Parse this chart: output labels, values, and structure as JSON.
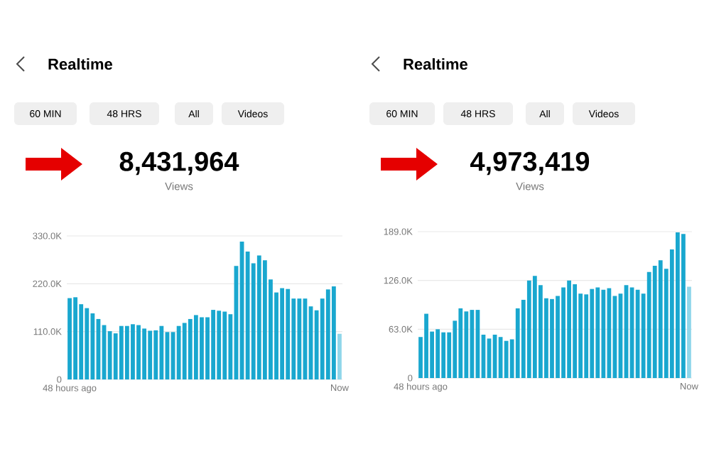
{
  "chart_data": [
    {
      "type": "bar",
      "title": "Realtime",
      "subtitle": "8,431,964",
      "annotations": [
        "60 MIN",
        "48 HRS",
        "All",
        "Videos",
        "Views"
      ],
      "categories": [
        "48 hours ago",
        null,
        null,
        null,
        null,
        null,
        null,
        null,
        null,
        null,
        null,
        null,
        null,
        null,
        null,
        null,
        null,
        null,
        null,
        null,
        null,
        null,
        null,
        null,
        null,
        null,
        null,
        null,
        null,
        null,
        null,
        null,
        null,
        null,
        null,
        null,
        null,
        null,
        null,
        null,
        null,
        null,
        null,
        null,
        null,
        null,
        null,
        "Now"
      ],
      "values": [
        187,
        189,
        173,
        164,
        152,
        139,
        125,
        111,
        106,
        123,
        123,
        127,
        125,
        117,
        112,
        113,
        123,
        109,
        109,
        123,
        130,
        139,
        148,
        143,
        143,
        160,
        158,
        156,
        150,
        261,
        317,
        294,
        267,
        285,
        274,
        230,
        200,
        210,
        208,
        186,
        186,
        186,
        168,
        159,
        186,
        207,
        214,
        105
      ],
      "colors": [
        "#19a7cf",
        "#19a7cf",
        "#19a7cf",
        "#19a7cf",
        "#19a7cf",
        "#19a7cf",
        "#19a7cf",
        "#19a7cf",
        "#19a7cf",
        "#19a7cf",
        "#19a7cf",
        "#19a7cf",
        "#19a7cf",
        "#19a7cf",
        "#19a7cf",
        "#19a7cf",
        "#19a7cf",
        "#19a7cf",
        "#19a7cf",
        "#19a7cf",
        "#19a7cf",
        "#19a7cf",
        "#19a7cf",
        "#19a7cf",
        "#19a7cf",
        "#19a7cf",
        "#19a7cf",
        "#19a7cf",
        "#19a7cf",
        "#19a7cf",
        "#19a7cf",
        "#19a7cf",
        "#19a7cf",
        "#19a7cf",
        "#19a7cf",
        "#19a7cf",
        "#19a7cf",
        "#19a7cf",
        "#19a7cf",
        "#19a7cf",
        "#19a7cf",
        "#19a7cf",
        "#19a7cf",
        "#19a7cf",
        "#19a7cf",
        "#19a7cf",
        "#19a7cf",
        "#8fd6ea"
      ],
      "ylim": [
        0,
        330
      ],
      "yticks": [
        {
          "value": 0,
          "label": "0"
        },
        {
          "value": 110,
          "label": "110.0K"
        },
        {
          "value": 220,
          "label": "220.0K"
        },
        {
          "value": 330,
          "label": "330.0K"
        }
      ],
      "grid": "y"
    },
    {
      "type": "bar",
      "title": "Realtime",
      "subtitle": "4,973,419",
      "annotations": [
        "60 MIN",
        "48 HRS",
        "All",
        "Videos",
        "Views"
      ],
      "categories": [
        "48 hours ago",
        null,
        null,
        null,
        null,
        null,
        null,
        null,
        null,
        null,
        null,
        null,
        null,
        null,
        null,
        null,
        null,
        null,
        null,
        null,
        null,
        null,
        null,
        null,
        null,
        null,
        null,
        null,
        null,
        null,
        null,
        null,
        null,
        null,
        null,
        null,
        null,
        null,
        null,
        null,
        null,
        null,
        null,
        null,
        null,
        null,
        null,
        "Now"
      ],
      "values": [
        53,
        83,
        60,
        63,
        59,
        59,
        74,
        90,
        86,
        88,
        88,
        56,
        51,
        56,
        53,
        48,
        50,
        90,
        101,
        126,
        132,
        120,
        103,
        102,
        106,
        117,
        126,
        121,
        109,
        108,
        115,
        117,
        114,
        116,
        106,
        109,
        120,
        117,
        114,
        109,
        137,
        145,
        152,
        141,
        166,
        188,
        186,
        118
      ],
      "colors": [
        "#19a7cf",
        "#19a7cf",
        "#19a7cf",
        "#19a7cf",
        "#19a7cf",
        "#19a7cf",
        "#19a7cf",
        "#19a7cf",
        "#19a7cf",
        "#19a7cf",
        "#19a7cf",
        "#19a7cf",
        "#19a7cf",
        "#19a7cf",
        "#19a7cf",
        "#19a7cf",
        "#19a7cf",
        "#19a7cf",
        "#19a7cf",
        "#19a7cf",
        "#19a7cf",
        "#19a7cf",
        "#19a7cf",
        "#19a7cf",
        "#19a7cf",
        "#19a7cf",
        "#19a7cf",
        "#19a7cf",
        "#19a7cf",
        "#19a7cf",
        "#19a7cf",
        "#19a7cf",
        "#19a7cf",
        "#19a7cf",
        "#19a7cf",
        "#19a7cf",
        "#19a7cf",
        "#19a7cf",
        "#19a7cf",
        "#19a7cf",
        "#19a7cf",
        "#19a7cf",
        "#19a7cf",
        "#19a7cf",
        "#19a7cf",
        "#19a7cf",
        "#19a7cf",
        "#8fd6ea"
      ],
      "ylim": [
        0,
        189
      ],
      "yticks": [
        {
          "value": 0,
          "label": "0"
        },
        {
          "value": 63,
          "label": "63.0K"
        },
        {
          "value": 126,
          "label": "126.0K"
        },
        {
          "value": 189,
          "label": "189.0K"
        }
      ],
      "grid": "y"
    }
  ]
}
